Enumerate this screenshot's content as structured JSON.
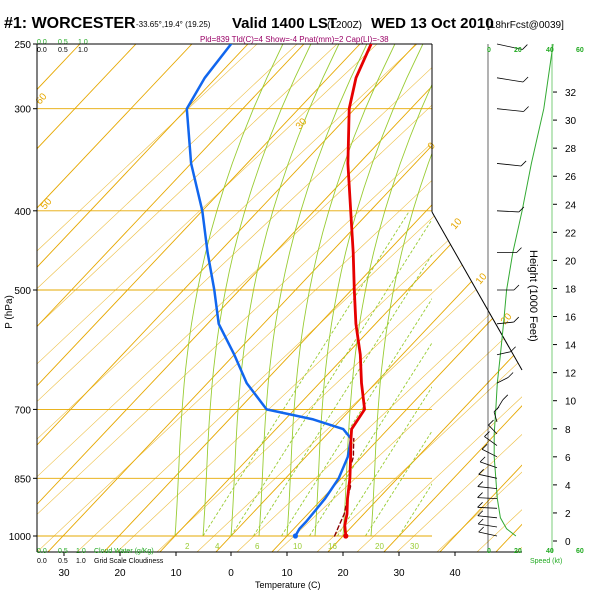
{
  "header": {
    "station": "#1: WORCESTER",
    "coords": "-33.65°,19.4° (19.25)",
    "valid": "Valid 1400 LST",
    "utc": "(1200Z)",
    "date": "WED 13 Oct 2010",
    "forecast": "[18hrFcst@0039]",
    "indices": "Pld=839 Tld(C)=4 Show=-4 Pnat(mm)=2 Cap(LI)=-38"
  },
  "legend": {
    "cloud_top_ticks": [
      "0.0",
      "0.5",
      "1.0"
    ],
    "cloud_bottom_ticks": [
      "0.0",
      "0.5",
      "1.0"
    ],
    "cloud_water_label": "Cloud Water (g/Kg)",
    "cloud_shade_label": "Grid Scale Cloudiness",
    "speed_label": "Speed (kt)",
    "speed_ticks": [
      "0",
      "20",
      "40",
      "60"
    ]
  },
  "colors": {
    "isotherm": "#e6a800",
    "mixing": "#99cc33",
    "temperature": "#e60000",
    "dewpoint": "#1166ee",
    "parcel": "#880000",
    "green_text": "#22aa22",
    "wind_speed": "#33aa33"
  },
  "chart_data": {
    "type": "skew-t",
    "xlabel": "Temperature (C)",
    "ylabel": "P (hPa)",
    "y2label": "Height (1000 Feet)",
    "x_ticks_top_row": [
      "30",
      "20",
      "10",
      "0",
      "10",
      "20",
      "30",
      "40"
    ],
    "x_ticks_top_values": [
      -30,
      -20,
      -10,
      0,
      10,
      20,
      30,
      40
    ],
    "pressure_ticks": [
      250,
      300,
      400,
      500,
      700,
      850,
      1000
    ],
    "height_ticks": [
      0,
      2,
      4,
      6,
      8,
      10,
      12,
      14,
      16,
      18,
      20,
      22,
      24,
      26,
      28,
      30,
      32
    ],
    "isotherm_labels": [
      {
        "text": "10",
        "t": -10
      },
      {
        "text": "0",
        "t": 0
      },
      {
        "text": "10",
        "t": 10
      },
      {
        "text": "20",
        "t": 20
      },
      {
        "text": "30",
        "t": 30
      },
      {
        "text": "50",
        "t": -50
      },
      {
        "text": "60",
        "t": -60
      }
    ],
    "mixing_labels": [
      "2",
      "4",
      "6",
      "10",
      "16",
      "20",
      "30"
    ],
    "series": [
      {
        "name": "Temperature",
        "pressure": [
          1000,
          970,
          940,
          900,
          850,
          800,
          760,
          740,
          700,
          650,
          600,
          550,
          500,
          450,
          400,
          350,
          300,
          275,
          250
        ],
        "temperature": [
          20.5,
          18.5,
          17.0,
          14.5,
          11.5,
          8.0,
          5.0,
          3.5,
          2.5,
          -2.5,
          -7.5,
          -13.5,
          -19.5,
          -26.0,
          -33.5,
          -42.0,
          -51.0,
          -55.0,
          -58.0
        ]
      },
      {
        "name": "Dewpoint",
        "pressure": [
          1000,
          980,
          960,
          900,
          850,
          800,
          760,
          740,
          720,
          700,
          650,
          600,
          550,
          500,
          450,
          400,
          350,
          300,
          275,
          250
        ],
        "temperature": [
          11.5,
          11.0,
          11.0,
          10.5,
          9.5,
          7.5,
          5.0,
          2.0,
          -5.0,
          -15.0,
          -23.0,
          -30.0,
          -38.0,
          -44.5,
          -52.0,
          -60.0,
          -70.0,
          -80.0,
          -82.0,
          -83.0
        ]
      },
      {
        "name": "Parcel",
        "pressure": [
          1000,
          970,
          940,
          900,
          870,
          850,
          820,
          800,
          780,
          760
        ],
        "temperature": [
          18.5,
          17.5,
          16.5,
          14.5,
          13.0,
          11.5,
          9.5,
          8.5,
          7.0,
          5.5
        ]
      }
    ],
    "surface_markers": [
      {
        "name": "surface-temperature",
        "pressure": 1000,
        "t": 20.5,
        "color": "#e60000"
      },
      {
        "name": "surface-dewpoint",
        "pressure": 1000,
        "t": 11.5,
        "color": "#1166ee"
      }
    ],
    "wind_speed_profile": {
      "pressure": [
        1000,
        980,
        950,
        900,
        850,
        800,
        750,
        700,
        650,
        600,
        550,
        500,
        450,
        400,
        350,
        300,
        250
      ],
      "speed_kt": [
        18,
        12,
        8,
        6,
        5,
        4,
        4,
        5,
        6,
        8,
        10,
        12,
        16,
        22,
        28,
        36,
        42
      ]
    },
    "wind_barbs": {
      "pressure": [
        1000,
        975,
        950,
        925,
        900,
        875,
        850,
        825,
        800,
        775,
        750,
        725,
        700,
        650,
        600,
        550,
        500,
        450,
        400,
        350,
        300,
        275,
        250
      ],
      "direction_deg": [
        110,
        105,
        100,
        95,
        95,
        100,
        110,
        120,
        130,
        140,
        150,
        170,
        200,
        230,
        250,
        260,
        270,
        270,
        275,
        280,
        280,
        285,
        290
      ],
      "speed_kt": [
        15,
        15,
        15,
        15,
        15,
        15,
        15,
        15,
        15,
        15,
        10,
        10,
        10,
        5,
        5,
        10,
        10,
        15,
        20,
        25,
        30,
        35,
        40
      ]
    }
  }
}
